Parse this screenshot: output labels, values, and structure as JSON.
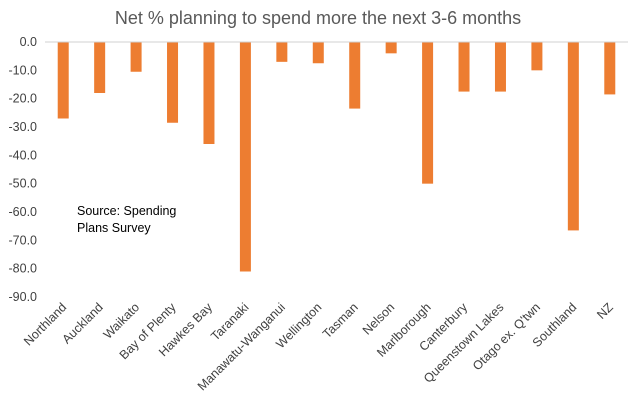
{
  "chart_data": {
    "type": "bar",
    "title": "Net % planning to spend more the next 3-6 months",
    "categories": [
      "Northland",
      "Auckland",
      "Waikato",
      "Bay of Plenty",
      "Hawkes Bay",
      "Taranaki",
      "Manawatu-Wanganui",
      "Wellington",
      "Tasman",
      "Nelson",
      "Marlborough",
      "Canterbury",
      "Queenstown Lakes",
      "Otago ex. Q'twn",
      "Southland",
      "NZ"
    ],
    "values": [
      -27,
      -18,
      -10.5,
      -28.5,
      -36,
      -81,
      -7,
      -7.5,
      -23.5,
      -4,
      -50,
      -17.5,
      -17.5,
      -10,
      -66.5,
      -18.5
    ],
    "yticks": [
      "0.0",
      "-10.0",
      "-20.0",
      "-30.0",
      "-40.0",
      "-50.0",
      "-60.0",
      "-70.0",
      "-80.0",
      "-90.0"
    ],
    "ylim": [
      -90,
      0
    ],
    "grid": false,
    "bar_color": "#ED7D31",
    "annotation": [
      "Source: Spending",
      "Plans Survey"
    ]
  }
}
